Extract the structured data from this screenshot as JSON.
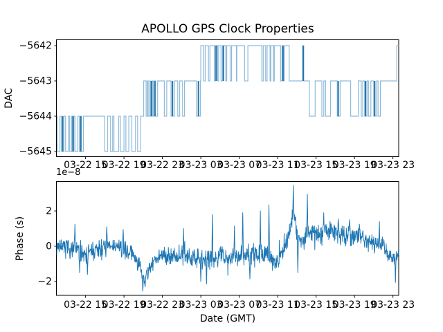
{
  "figure": {
    "title": "APOLLO GPS Clock Properties",
    "background": "#ffffff",
    "text_color": "#000000",
    "spine_color": "#000000"
  },
  "colors": {
    "step_line_light": "#8fbbd9",
    "step_line_dark": "#2374ab",
    "phase_line": "#1f77b4"
  },
  "x_axis": {
    "label": "Date (GMT)",
    "tick_labels": [
      "03-22 15",
      "03-22 19",
      "03-22 23",
      "03-23 03",
      "03-23 07",
      "03-23 11",
      "03-23 15",
      "03-23 19",
      "03-23 23"
    ],
    "tick_hours": [
      3,
      7,
      11,
      15,
      19,
      23,
      27,
      31,
      35
    ],
    "hours_range": [
      0,
      35.6
    ]
  },
  "chart_data": [
    {
      "type": "line",
      "subtype": "step",
      "title": "APOLLO GPS Clock Properties",
      "ylabel": "DAC",
      "yticks": [
        -5642,
        -5643,
        -5644,
        -5645
      ],
      "ytick_labels": [
        "−5642",
        "−5643",
        "−5644",
        "−5645"
      ],
      "ylim": [
        -5645.16,
        -5641.84
      ],
      "x_unit": "hours from left edge (ticks at 4-hour GMT intervals, 03-22 15 through 03-23 23)",
      "steps": [
        [
          0.0,
          -5644
        ],
        [
          0.05,
          -5645
        ],
        [
          0.33,
          -5644
        ],
        [
          0.48,
          -5645
        ],
        [
          0.76,
          -5644
        ],
        [
          0.92,
          -5645
        ],
        [
          1.2,
          -5644
        ],
        [
          1.35,
          -5645
        ],
        [
          1.55,
          -5644
        ],
        [
          1.62,
          -5645
        ],
        [
          1.78,
          -5644
        ],
        [
          1.9,
          -5645
        ],
        [
          2.2,
          -5644
        ],
        [
          2.36,
          -5645
        ],
        [
          2.5,
          -5644
        ],
        [
          2.56,
          -5645
        ],
        [
          2.78,
          -5644
        ],
        [
          5.0,
          -5645
        ],
        [
          5.3,
          -5644
        ],
        [
          5.6,
          -5645
        ],
        [
          5.82,
          -5644
        ],
        [
          5.95,
          -5645
        ],
        [
          6.45,
          -5644
        ],
        [
          6.62,
          -5645
        ],
        [
          7.0,
          -5644
        ],
        [
          7.2,
          -5645
        ],
        [
          7.5,
          -5644
        ],
        [
          7.82,
          -5645
        ],
        [
          8.2,
          -5644
        ],
        [
          8.42,
          -5645
        ],
        [
          8.75,
          -5644
        ],
        [
          9.05,
          -5643
        ],
        [
          9.3,
          -5644
        ],
        [
          9.42,
          -5643
        ],
        [
          9.52,
          -5644
        ],
        [
          9.68,
          -5643
        ],
        [
          9.78,
          -5644
        ],
        [
          9.95,
          -5643
        ],
        [
          10.05,
          -5644
        ],
        [
          10.18,
          -5643
        ],
        [
          10.28,
          -5644
        ],
        [
          10.5,
          -5643
        ],
        [
          11.2,
          -5644
        ],
        [
          11.45,
          -5643
        ],
        [
          11.9,
          -5644
        ],
        [
          12.25,
          -5643
        ],
        [
          12.6,
          -5644
        ],
        [
          12.8,
          -5643
        ],
        [
          13.1,
          -5644
        ],
        [
          13.3,
          -5643
        ],
        [
          14.55,
          -5644
        ],
        [
          14.95,
          -5643
        ],
        [
          15.0,
          -5642
        ],
        [
          15.3,
          -5643
        ],
        [
          15.45,
          -5642
        ],
        [
          15.8,
          -5643
        ],
        [
          15.95,
          -5642
        ],
        [
          16.4,
          -5643
        ],
        [
          16.5,
          -5642
        ],
        [
          16.75,
          -5643
        ],
        [
          16.85,
          -5642
        ],
        [
          17.1,
          -5643
        ],
        [
          17.25,
          -5642
        ],
        [
          17.6,
          -5643
        ],
        [
          17.7,
          -5642
        ],
        [
          18.05,
          -5643
        ],
        [
          18.2,
          -5642
        ],
        [
          18.7,
          -5643
        ],
        [
          18.75,
          -5642
        ],
        [
          19.55,
          -5643
        ],
        [
          19.9,
          -5642
        ],
        [
          21.35,
          -5643
        ],
        [
          21.5,
          -5642
        ],
        [
          21.75,
          -5643
        ],
        [
          21.9,
          -5642
        ],
        [
          22.2,
          -5643
        ],
        [
          22.3,
          -5642
        ],
        [
          22.55,
          -5643
        ],
        [
          22.65,
          -5642
        ],
        [
          23.3,
          -5643
        ],
        [
          23.45,
          -5642
        ],
        [
          23.6,
          -5643
        ],
        [
          23.7,
          -5642
        ],
        [
          24.2,
          -5643
        ],
        [
          25.6,
          -5642
        ],
        [
          25.72,
          -5643
        ],
        [
          26.3,
          -5644
        ],
        [
          26.9,
          -5643
        ],
        [
          27.6,
          -5644
        ],
        [
          27.8,
          -5643
        ],
        [
          28.0,
          -5644
        ],
        [
          28.5,
          -5643
        ],
        [
          29.2,
          -5644
        ],
        [
          29.5,
          -5643
        ],
        [
          30.6,
          -5644
        ],
        [
          31.4,
          -5643
        ],
        [
          31.7,
          -5644
        ],
        [
          31.85,
          -5643
        ],
        [
          32.05,
          -5644
        ],
        [
          32.3,
          -5643
        ],
        [
          32.45,
          -5644
        ],
        [
          32.7,
          -5643
        ],
        [
          33.0,
          -5644
        ],
        [
          33.3,
          -5643
        ],
        [
          33.45,
          -5644
        ],
        [
          33.7,
          -5643
        ],
        [
          35.4,
          -5642
        ]
      ],
      "dark_marks": [
        [
          0.62,
          -5644,
          -5645
        ],
        [
          1.7,
          -5644,
          -5645
        ],
        [
          2.5,
          -5644,
          -5645
        ],
        [
          9.85,
          -5643,
          -5644
        ],
        [
          10.22,
          -5643,
          -5644
        ],
        [
          12.05,
          -5643,
          -5644
        ],
        [
          14.75,
          -5643,
          -5644
        ],
        [
          16.6,
          -5642,
          -5643
        ],
        [
          17.35,
          -5642,
          -5643
        ],
        [
          23.55,
          -5642,
          -5643
        ],
        [
          25.66,
          -5642,
          -5643
        ],
        [
          29.3,
          -5643,
          -5644
        ],
        [
          32.15,
          -5643,
          -5644
        ],
        [
          33.1,
          -5643,
          -5644
        ]
      ]
    },
    {
      "type": "line",
      "subtype": "noisy",
      "ylabel": "Phase (s)",
      "y_offset_text": "1e−8",
      "yticks": [
        2,
        0,
        -2
      ],
      "ytick_labels": [
        "2",
        "0",
        "−2"
      ],
      "ylim": [
        -2.8,
        3.65
      ],
      "xlabel": "Date (GMT)",
      "anchors_t_mean_spread": [
        [
          0,
          0.05,
          0.45
        ],
        [
          1,
          -0.1,
          0.5
        ],
        [
          2,
          -0.2,
          0.55
        ],
        [
          3,
          -0.35,
          0.55
        ],
        [
          4,
          -0.3,
          0.5
        ],
        [
          5,
          -0.05,
          0.5
        ],
        [
          6,
          0.0,
          0.45
        ],
        [
          7,
          -0.15,
          0.45
        ],
        [
          8,
          -0.5,
          0.45
        ],
        [
          8.6,
          -1.1,
          0.45
        ],
        [
          9.0,
          -1.9,
          0.4
        ],
        [
          9.4,
          -1.6,
          0.4
        ],
        [
          10,
          -0.9,
          0.45
        ],
        [
          10.8,
          -0.5,
          0.5
        ],
        [
          12,
          -0.55,
          0.5
        ],
        [
          13,
          -0.45,
          0.55
        ],
        [
          14,
          -0.6,
          0.5
        ],
        [
          15,
          -0.75,
          0.55
        ],
        [
          16,
          -0.7,
          0.55
        ],
        [
          17,
          -0.55,
          0.5
        ],
        [
          18,
          -0.6,
          0.55
        ],
        [
          19,
          -0.5,
          0.6
        ],
        [
          20,
          -0.45,
          0.6
        ],
        [
          21,
          -0.5,
          0.6
        ],
        [
          22,
          -0.65,
          0.55
        ],
        [
          22.8,
          -0.85,
          0.5
        ],
        [
          23.4,
          -0.4,
          0.55
        ],
        [
          24,
          0.35,
          0.5
        ],
        [
          24.4,
          1.2,
          0.5
        ],
        [
          24.65,
          2.1,
          0.55
        ],
        [
          24.9,
          1.0,
          0.5
        ],
        [
          25.4,
          0.3,
          0.5
        ],
        [
          26,
          0.6,
          0.55
        ],
        [
          26.6,
          0.8,
          0.5
        ],
        [
          27.4,
          0.55,
          0.55
        ],
        [
          28,
          0.8,
          0.55
        ],
        [
          28.8,
          0.95,
          0.5
        ],
        [
          29.6,
          0.65,
          0.5
        ],
        [
          30.4,
          0.55,
          0.55
        ],
        [
          31.2,
          0.75,
          0.5
        ],
        [
          32,
          0.4,
          0.5
        ],
        [
          32.8,
          0.2,
          0.55
        ],
        [
          33.6,
          0.15,
          0.5
        ],
        [
          34.3,
          -0.3,
          0.5
        ],
        [
          35,
          -0.7,
          0.45
        ],
        [
          35.6,
          -0.55,
          0.4
        ]
      ],
      "spikes_t_value": [
        [
          1.9,
          1.25
        ],
        [
          2.4,
          -1.5
        ],
        [
          3.2,
          -1.6
        ],
        [
          5.2,
          1.1
        ],
        [
          6.9,
          0.95
        ],
        [
          8.95,
          -2.55
        ],
        [
          9.2,
          -2.3
        ],
        [
          13.2,
          1.0
        ],
        [
          15.0,
          -2.0
        ],
        [
          15.6,
          -2.15
        ],
        [
          16.2,
          1.8
        ],
        [
          18.5,
          1.15
        ],
        [
          19.35,
          1.9
        ],
        [
          20.1,
          -1.85
        ],
        [
          21.2,
          2.0
        ],
        [
          22.1,
          2.35
        ],
        [
          24.62,
          3.45
        ],
        [
          25.1,
          -1.5
        ],
        [
          26.08,
          2.95
        ],
        [
          27.8,
          1.9
        ],
        [
          29.3,
          1.55
        ],
        [
          30.5,
          1.5
        ],
        [
          31.5,
          1.25
        ],
        [
          33.6,
          1.4
        ],
        [
          35.25,
          -2.05
        ]
      ],
      "noise": {
        "seed": 7,
        "points": 1150,
        "tri_scale": 1.25,
        "burst_prob": 0.03,
        "burst_scale": 2.2
      }
    }
  ]
}
